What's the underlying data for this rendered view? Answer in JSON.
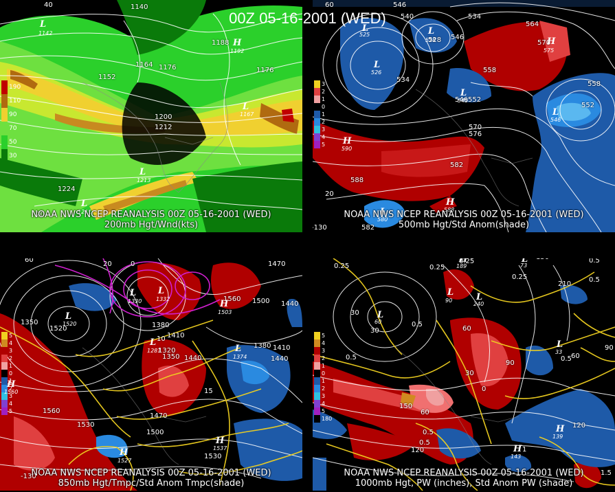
{
  "title": "00Z 05-16-2001 (WED)",
  "colors": {
    "wind_green_light": "#2bd02b",
    "wind_green_dark": "#0a7a0a",
    "wind_yellow": "#f0e030",
    "wind_orange": "#d08a20",
    "wind_brown": "#9a5a10",
    "wind_red": "#c00000",
    "anom_pos_dark": "#b00000",
    "anom_pos_mid": "#e04040",
    "anom_neg_dark": "#1e5aa8",
    "anom_neg_light": "#2a8ae0",
    "contour_white": "#ffffff",
    "contour_yellow": "#f0d020",
    "contour_magenta": "#d020d0"
  },
  "panels": [
    {
      "caption_line1": "NOAA NWS NCEP REANALYSIS 00Z 05-16-2001 (WED)",
      "caption_line2": "200mb Hgt/Wnd(kts)",
      "legend": [
        "190",
        "110",
        "90",
        "70",
        "50",
        "30"
      ],
      "labels": [
        "1140",
        "1188",
        "1164",
        "1152",
        "1176",
        "1176",
        "1200",
        "1212",
        "1224",
        "20",
        "40"
      ],
      "centers": [
        {
          "letter": "L",
          "value": "1142"
        },
        {
          "letter": "H",
          "value": "1192"
        },
        {
          "letter": "L",
          "value": "1167"
        },
        {
          "letter": "L",
          "value": "1213"
        },
        {
          "letter": "L",
          "value": "1211"
        }
      ]
    },
    {
      "caption_line1": "NOAA NWS NCEP REANALYSIS 00Z 05-16-2001 (WED)",
      "caption_line2": "500mb Hgt/Std Anom(shade)",
      "legend": [
        "3",
        "2",
        "1",
        "0",
        "1",
        "2",
        "3",
        "4",
        "5"
      ],
      "labels": [
        "546",
        "540",
        "534",
        "564",
        "528",
        "546",
        "570",
        "558",
        "534",
        "552",
        "546",
        "558",
        "552",
        "570",
        "576",
        "582",
        "588",
        "582",
        "20",
        "-130",
        "60"
      ],
      "centers": [
        {
          "letter": "L",
          "value": "525"
        },
        {
          "letter": "L",
          "value": "528"
        },
        {
          "letter": "L",
          "value": "526"
        },
        {
          "letter": "L",
          "value": "545"
        },
        {
          "letter": "H",
          "value": "575"
        },
        {
          "letter": "L",
          "value": "546"
        },
        {
          "letter": "H",
          "value": "590"
        },
        {
          "letter": "H",
          "value": "588"
        },
        {
          "letter": "L",
          "value": "580"
        }
      ]
    },
    {
      "caption_line1": "NOAA NWS NCEP REANALYSIS 00Z 05-16-2001 (WED)",
      "caption_line2": "850mb Hgt/Tmpc/Std Anom Tmpc(shade)",
      "legend": [
        "5",
        "4",
        "3",
        "2",
        "1",
        "0",
        "1",
        "2",
        "3",
        "4",
        "5"
      ],
      "labels": [
        "1470",
        "1560",
        "1500",
        "1440",
        "1350",
        "1520",
        "1380",
        "1410",
        "1320",
        "1350",
        "1440",
        "1380",
        "1410",
        "1440",
        "1560",
        "1530",
        "1470",
        "1500",
        "1530",
        "15",
        "10",
        "0",
        "-130",
        "60",
        "20"
      ],
      "centers": [
        {
          "letter": "L",
          "value": "1330"
        },
        {
          "letter": "L",
          "value": "1332"
        },
        {
          "letter": "L",
          "value": "1281"
        },
        {
          "letter": "H",
          "value": "1503"
        },
        {
          "letter": "L",
          "value": "1374"
        },
        {
          "letter": "H",
          "value": "1537"
        },
        {
          "letter": "H",
          "value": "1527"
        },
        {
          "letter": "L",
          "value": "1520"
        },
        {
          "letter": "H",
          "value": "1560"
        }
      ]
    },
    {
      "caption_line1": "NOAA NWS NCEP REANALYSIS 00Z 05-16-2001 (WED)",
      "caption_line2": "1000mb Hgt, PW (inches), Std Anom PW (shade)",
      "legend": [
        "5",
        "4",
        "3",
        "2",
        "1",
        "0",
        "1",
        "2",
        "3",
        "4",
        "5",
        "180"
      ],
      "labels": [
        "0.25",
        "0.25",
        "150",
        "0.5",
        "210",
        "0.5",
        "0.25",
        "30",
        "0.5",
        "90",
        "60",
        "0.5",
        "60",
        "0.5",
        "30",
        "90",
        "30",
        "0",
        "150",
        "60",
        "120",
        "0.5",
        "120",
        "1.5",
        "0.25",
        "0.5",
        "1"
      ],
      "centers": [
        {
          "letter": "L",
          "value": "73"
        },
        {
          "letter": "H",
          "value": "189"
        },
        {
          "letter": "L",
          "value": "90"
        },
        {
          "letter": "L",
          "value": "60"
        },
        {
          "letter": "H",
          "value": "139"
        },
        {
          "letter": "H",
          "value": "143"
        },
        {
          "letter": "L",
          "value": "33"
        },
        {
          "letter": "L",
          "value": "240"
        }
      ]
    }
  ]
}
